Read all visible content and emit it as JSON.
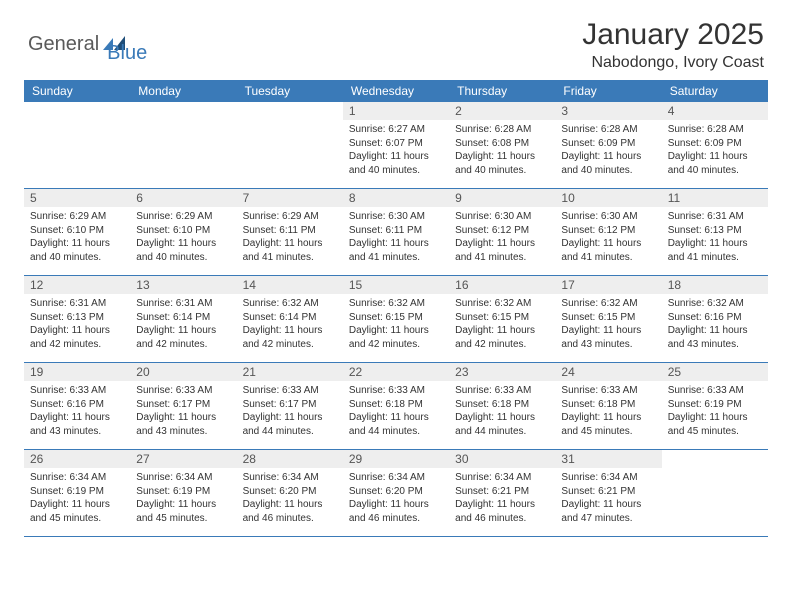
{
  "logo": {
    "part1": "General",
    "part2": "Blue"
  },
  "title": "January 2025",
  "location": "Nabodongo, Ivory Coast",
  "colors": {
    "header_bg": "#3a7ab8",
    "header_text": "#ffffff",
    "daynum_bg": "#eeeeee",
    "text": "#333333",
    "logo_gray": "#5a5a5a",
    "logo_blue": "#3a7ab8",
    "border": "#3a7ab8"
  },
  "typography": {
    "title_fontsize": 30,
    "location_fontsize": 16,
    "dayheader_fontsize": 12,
    "daynum_fontsize": 12,
    "detail_fontsize": 10
  },
  "day_names": [
    "Sunday",
    "Monday",
    "Tuesday",
    "Wednesday",
    "Thursday",
    "Friday",
    "Saturday"
  ],
  "weeks": [
    [
      null,
      null,
      null,
      {
        "n": "1",
        "sr": "6:27 AM",
        "ss": "6:07 PM",
        "dl": "11 hours and 40 minutes."
      },
      {
        "n": "2",
        "sr": "6:28 AM",
        "ss": "6:08 PM",
        "dl": "11 hours and 40 minutes."
      },
      {
        "n": "3",
        "sr": "6:28 AM",
        "ss": "6:09 PM",
        "dl": "11 hours and 40 minutes."
      },
      {
        "n": "4",
        "sr": "6:28 AM",
        "ss": "6:09 PM",
        "dl": "11 hours and 40 minutes."
      }
    ],
    [
      {
        "n": "5",
        "sr": "6:29 AM",
        "ss": "6:10 PM",
        "dl": "11 hours and 40 minutes."
      },
      {
        "n": "6",
        "sr": "6:29 AM",
        "ss": "6:10 PM",
        "dl": "11 hours and 40 minutes."
      },
      {
        "n": "7",
        "sr": "6:29 AM",
        "ss": "6:11 PM",
        "dl": "11 hours and 41 minutes."
      },
      {
        "n": "8",
        "sr": "6:30 AM",
        "ss": "6:11 PM",
        "dl": "11 hours and 41 minutes."
      },
      {
        "n": "9",
        "sr": "6:30 AM",
        "ss": "6:12 PM",
        "dl": "11 hours and 41 minutes."
      },
      {
        "n": "10",
        "sr": "6:30 AM",
        "ss": "6:12 PM",
        "dl": "11 hours and 41 minutes."
      },
      {
        "n": "11",
        "sr": "6:31 AM",
        "ss": "6:13 PM",
        "dl": "11 hours and 41 minutes."
      }
    ],
    [
      {
        "n": "12",
        "sr": "6:31 AM",
        "ss": "6:13 PM",
        "dl": "11 hours and 42 minutes."
      },
      {
        "n": "13",
        "sr": "6:31 AM",
        "ss": "6:14 PM",
        "dl": "11 hours and 42 minutes."
      },
      {
        "n": "14",
        "sr": "6:32 AM",
        "ss": "6:14 PM",
        "dl": "11 hours and 42 minutes."
      },
      {
        "n": "15",
        "sr": "6:32 AM",
        "ss": "6:15 PM",
        "dl": "11 hours and 42 minutes."
      },
      {
        "n": "16",
        "sr": "6:32 AM",
        "ss": "6:15 PM",
        "dl": "11 hours and 42 minutes."
      },
      {
        "n": "17",
        "sr": "6:32 AM",
        "ss": "6:15 PM",
        "dl": "11 hours and 43 minutes."
      },
      {
        "n": "18",
        "sr": "6:32 AM",
        "ss": "6:16 PM",
        "dl": "11 hours and 43 minutes."
      }
    ],
    [
      {
        "n": "19",
        "sr": "6:33 AM",
        "ss": "6:16 PM",
        "dl": "11 hours and 43 minutes."
      },
      {
        "n": "20",
        "sr": "6:33 AM",
        "ss": "6:17 PM",
        "dl": "11 hours and 43 minutes."
      },
      {
        "n": "21",
        "sr": "6:33 AM",
        "ss": "6:17 PM",
        "dl": "11 hours and 44 minutes."
      },
      {
        "n": "22",
        "sr": "6:33 AM",
        "ss": "6:18 PM",
        "dl": "11 hours and 44 minutes."
      },
      {
        "n": "23",
        "sr": "6:33 AM",
        "ss": "6:18 PM",
        "dl": "11 hours and 44 minutes."
      },
      {
        "n": "24",
        "sr": "6:33 AM",
        "ss": "6:18 PM",
        "dl": "11 hours and 45 minutes."
      },
      {
        "n": "25",
        "sr": "6:33 AM",
        "ss": "6:19 PM",
        "dl": "11 hours and 45 minutes."
      }
    ],
    [
      {
        "n": "26",
        "sr": "6:34 AM",
        "ss": "6:19 PM",
        "dl": "11 hours and 45 minutes."
      },
      {
        "n": "27",
        "sr": "6:34 AM",
        "ss": "6:19 PM",
        "dl": "11 hours and 45 minutes."
      },
      {
        "n": "28",
        "sr": "6:34 AM",
        "ss": "6:20 PM",
        "dl": "11 hours and 46 minutes."
      },
      {
        "n": "29",
        "sr": "6:34 AM",
        "ss": "6:20 PM",
        "dl": "11 hours and 46 minutes."
      },
      {
        "n": "30",
        "sr": "6:34 AM",
        "ss": "6:21 PM",
        "dl": "11 hours and 46 minutes."
      },
      {
        "n": "31",
        "sr": "6:34 AM",
        "ss": "6:21 PM",
        "dl": "11 hours and 47 minutes."
      },
      null
    ]
  ],
  "labels": {
    "sunrise": "Sunrise:",
    "sunset": "Sunset:",
    "daylight": "Daylight:"
  }
}
